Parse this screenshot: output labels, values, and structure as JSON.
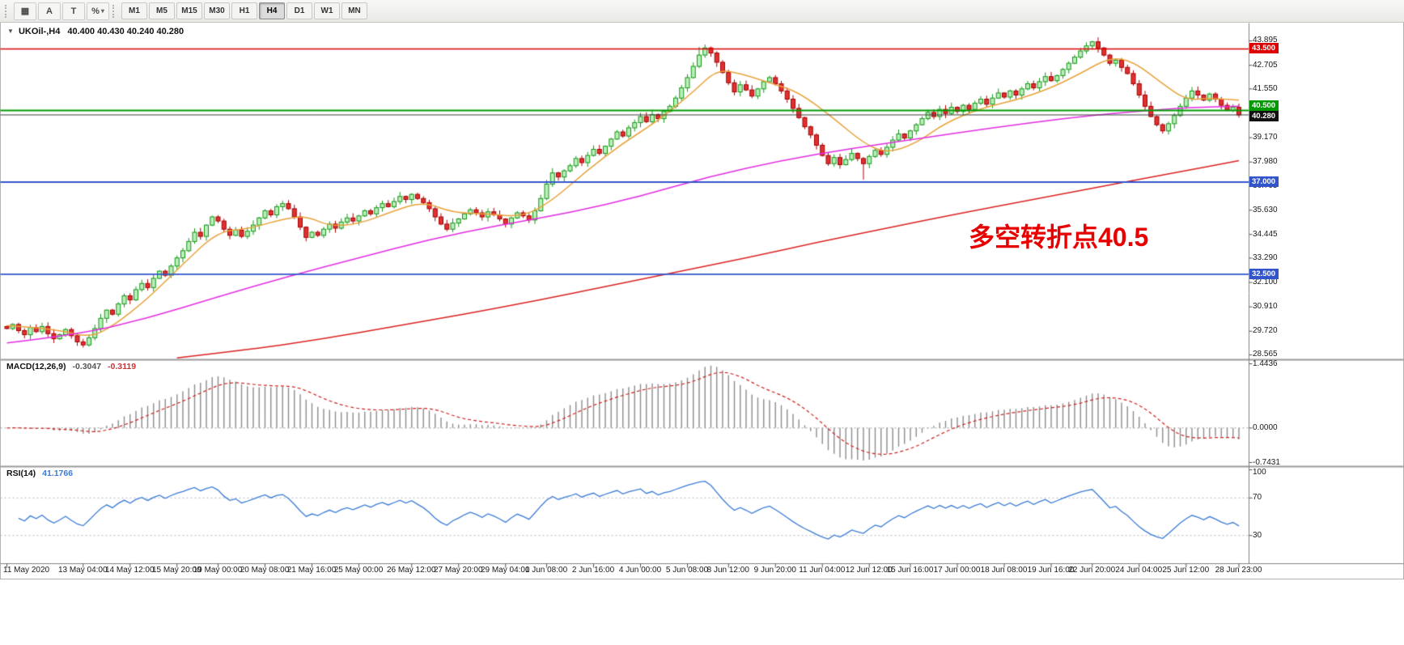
{
  "window": {
    "title_symbol": "UKOil-,H4",
    "ohlc": "40.400 40.430 40.240 40.280"
  },
  "toolbar": {
    "tools": [
      {
        "id": "chart-grid-tool",
        "glyph": "▦",
        "caret": false
      },
      {
        "id": "cursor-tool",
        "glyph": "A",
        "caret": false
      },
      {
        "id": "text-tool",
        "glyph": "T",
        "caret": false
      },
      {
        "id": "styles-dropdown",
        "glyph": "%",
        "caret": true
      }
    ],
    "timeframes": [
      {
        "label": "M1",
        "active": false
      },
      {
        "label": "M5",
        "active": false
      },
      {
        "label": "M15",
        "active": false
      },
      {
        "label": "M30",
        "active": false
      },
      {
        "label": "H1",
        "active": false
      },
      {
        "label": "H4",
        "active": true
      },
      {
        "label": "D1",
        "active": false
      },
      {
        "label": "W1",
        "active": false
      },
      {
        "label": "MN",
        "active": false
      }
    ]
  },
  "main_pane": {
    "ticks": [
      "43.895",
      "42.705",
      "41.550",
      "39.170",
      "37.980",
      "36.795",
      "35.630",
      "34.445",
      "33.290",
      "32.100",
      "30.910",
      "29.720",
      "28.565"
    ],
    "hlines": [
      {
        "value": 43.5,
        "label": "43.500",
        "color": "#dc0000",
        "width": 1.6,
        "badge_pos": "center"
      },
      {
        "value": 40.5,
        "label": "40.500",
        "color": "#009900",
        "width": 2.0,
        "badge_pos": "above"
      },
      {
        "value": 37.0,
        "label": "37.000",
        "color": "#3355cc",
        "width": 1.8,
        "badge_pos": "center"
      },
      {
        "value": 32.5,
        "label": "32.500",
        "color": "#3355cc",
        "width": 1.8,
        "badge_pos": "center"
      }
    ],
    "current_price": {
      "value": 40.28,
      "label": "40.280",
      "color": "#111111",
      "line_color": "#3c3c3c"
    },
    "annotation": {
      "text": "多空转折点40.5",
      "color": "#e60000"
    }
  },
  "macd": {
    "label": "MACD(12,26,9)",
    "value_main": "-0.3047",
    "value_signal": "-0.3119",
    "fast": 12,
    "slow": 26,
    "signal_period": 9,
    "ticks": [
      "1.4436",
      "0.0000",
      "-0.7431"
    ]
  },
  "rsi": {
    "label": "RSI(14)",
    "value": "41.1766",
    "period": 14,
    "levels": [
      70,
      30
    ],
    "ticks": [
      "100",
      "70",
      "30"
    ]
  },
  "time_axis": {
    "labels": [
      {
        "bar": 0,
        "text": "11 May 2020"
      },
      {
        "bar": 13,
        "text": "13 May 04:00"
      },
      {
        "bar": 21,
        "text": "14 May 12:00"
      },
      {
        "bar": 29,
        "text": "15 May 20:00"
      },
      {
        "bar": 36,
        "text": "19 May 00:00"
      },
      {
        "bar": 44,
        "text": "20 May 08:00"
      },
      {
        "bar": 52,
        "text": "21 May 16:00"
      },
      {
        "bar": 60,
        "text": "25 May 00:00"
      },
      {
        "bar": 69,
        "text": "26 May 12:00"
      },
      {
        "bar": 77,
        "text": "27 May 20:00"
      },
      {
        "bar": 85,
        "text": "29 May 04:00"
      },
      {
        "bar": 92,
        "text": "1 Jun 08:00"
      },
      {
        "bar": 100,
        "text": "2 Jun 16:00"
      },
      {
        "bar": 108,
        "text": "4 Jun 00:00"
      },
      {
        "bar": 116,
        "text": "5 Jun 08:00"
      },
      {
        "bar": 123,
        "text": "8 Jun 12:00"
      },
      {
        "bar": 131,
        "text": "9 Jun 20:00"
      },
      {
        "bar": 139,
        "text": "11 Jun 04:00"
      },
      {
        "bar": 147,
        "text": "12 Jun 12:00"
      },
      {
        "bar": 154,
        "text": "15 Jun 16:00"
      },
      {
        "bar": 162,
        "text": "17 Jun 00:00"
      },
      {
        "bar": 170,
        "text": "18 Jun 08:00"
      },
      {
        "bar": 178,
        "text": "19 Jun 16:00"
      },
      {
        "bar": 185,
        "text": "22 Jun 20:00"
      },
      {
        "bar": 193,
        "text": "24 Jun 04:00"
      },
      {
        "bar": 201,
        "text": "25 Jun 12:00"
      },
      {
        "bar": 210,
        "text": "28 Jun 23:00"
      }
    ]
  },
  "chart_data": {
    "type": "candlestick",
    "title": "UKOil-,H4",
    "symbol": "UKOil-",
    "timeframe": "H4",
    "last_ohlc": [
      40.4,
      40.43,
      40.24,
      40.28
    ],
    "ylim": [
      28.4,
      44.76
    ],
    "first_open": 29.95,
    "closes": [
      29.85,
      30.05,
      29.75,
      29.55,
      29.9,
      29.7,
      29.95,
      29.6,
      29.35,
      29.55,
      29.8,
      29.5,
      29.2,
      29.05,
      29.4,
      29.85,
      30.35,
      30.75,
      30.55,
      31.05,
      31.45,
      31.25,
      31.75,
      32.05,
      31.85,
      32.3,
      32.65,
      32.45,
      32.9,
      33.3,
      33.65,
      34.1,
      34.55,
      34.35,
      34.9,
      35.3,
      35.1,
      34.7,
      34.4,
      34.65,
      34.35,
      34.6,
      34.9,
      35.25,
      35.6,
      35.4,
      35.8,
      35.95,
      35.7,
      35.3,
      34.8,
      34.3,
      34.55,
      34.4,
      34.7,
      34.95,
      34.75,
      35.05,
      35.25,
      35.1,
      35.35,
      35.6,
      35.45,
      35.75,
      35.95,
      35.8,
      36.05,
      36.3,
      36.15,
      36.4,
      36.2,
      36.0,
      35.7,
      35.3,
      34.95,
      34.7,
      35.0,
      35.2,
      35.45,
      35.65,
      35.5,
      35.3,
      35.55,
      35.4,
      35.2,
      34.95,
      35.25,
      35.5,
      35.35,
      35.15,
      35.6,
      36.2,
      36.9,
      37.45,
      37.25,
      37.55,
      37.8,
      38.15,
      37.95,
      38.3,
      38.6,
      38.4,
      38.75,
      39.1,
      39.45,
      39.25,
      39.65,
      39.9,
      40.2,
      39.95,
      40.3,
      40.1,
      40.45,
      40.7,
      41.1,
      41.6,
      42.1,
      42.65,
      43.2,
      43.55,
      43.3,
      42.85,
      42.35,
      41.85,
      41.4,
      41.75,
      41.5,
      41.2,
      41.55,
      41.9,
      42.1,
      41.8,
      41.45,
      41.05,
      40.6,
      40.15,
      39.7,
      39.3,
      38.8,
      38.3,
      37.9,
      38.2,
      37.85,
      38.1,
      38.4,
      38.15,
      37.9,
      38.25,
      38.55,
      38.35,
      38.7,
      39.05,
      39.35,
      39.15,
      39.5,
      39.8,
      40.1,
      40.4,
      40.2,
      40.55,
      40.35,
      40.65,
      40.45,
      40.75,
      40.55,
      40.85,
      41.05,
      40.8,
      41.1,
      41.35,
      41.15,
      41.45,
      41.25,
      41.55,
      41.8,
      41.6,
      41.9,
      42.15,
      41.95,
      42.2,
      42.5,
      42.8,
      43.1,
      43.4,
      43.65,
      43.85,
      43.55,
      43.2,
      42.8,
      42.95,
      42.6,
      42.3,
      41.8,
      41.25,
      40.7,
      40.2,
      39.8,
      39.5,
      39.85,
      40.25,
      40.7,
      41.1,
      41.45,
      41.25,
      41.0,
      41.3,
      41.05,
      40.75,
      40.5,
      40.65,
      40.28
    ],
    "wick_overrides": {
      "13": {
        "low": 28.92
      },
      "118": {
        "high": 43.6
      },
      "119": {
        "high": 43.72
      },
      "146": {
        "low": 37.12
      },
      "185": {
        "high": 43.895
      }
    },
    "moving_averages": [
      {
        "name": "ma-fast",
        "color": "#e8a23c",
        "points": [
          [
            0,
            30.0
          ],
          [
            8,
            29.85
          ],
          [
            14,
            29.4
          ],
          [
            18,
            29.95
          ],
          [
            24,
            31.3
          ],
          [
            30,
            33.0
          ],
          [
            36,
            34.6
          ],
          [
            41,
            34.7
          ],
          [
            47,
            35.2
          ],
          [
            51,
            35.35
          ],
          [
            55,
            34.85
          ],
          [
            60,
            34.95
          ],
          [
            66,
            35.6
          ],
          [
            71,
            36.05
          ],
          [
            76,
            35.5
          ],
          [
            82,
            35.45
          ],
          [
            88,
            35.3
          ],
          [
            93,
            36.1
          ],
          [
            99,
            37.6
          ],
          [
            105,
            38.9
          ],
          [
            111,
            40.0
          ],
          [
            117,
            41.4
          ],
          [
            121,
            42.5
          ],
          [
            125,
            42.3
          ],
          [
            130,
            41.85
          ],
          [
            135,
            41.4
          ],
          [
            141,
            40.1
          ],
          [
            146,
            38.9
          ],
          [
            150,
            38.4
          ],
          [
            155,
            38.9
          ],
          [
            160,
            39.9
          ],
          [
            166,
            40.6
          ],
          [
            172,
            41.0
          ],
          [
            178,
            41.6
          ],
          [
            183,
            42.3
          ],
          [
            188,
            43.1
          ],
          [
            192,
            42.9
          ],
          [
            197,
            41.8
          ],
          [
            201,
            41.0
          ],
          [
            205,
            41.1
          ],
          [
            210,
            41.0
          ]
        ]
      },
      {
        "name": "ma-mid",
        "color": "#e32ee3",
        "points": [
          [
            0,
            29.15
          ],
          [
            12,
            29.55
          ],
          [
            24,
            30.35
          ],
          [
            36,
            31.4
          ],
          [
            48,
            32.4
          ],
          [
            60,
            33.3
          ],
          [
            72,
            34.2
          ],
          [
            84,
            34.9
          ],
          [
            96,
            35.5
          ],
          [
            108,
            36.3
          ],
          [
            120,
            37.3
          ],
          [
            132,
            38.05
          ],
          [
            144,
            38.65
          ],
          [
            156,
            39.15
          ],
          [
            168,
            39.65
          ],
          [
            180,
            40.1
          ],
          [
            192,
            40.45
          ],
          [
            202,
            40.65
          ],
          [
            210,
            40.7
          ]
        ]
      },
      {
        "name": "ma-slow",
        "color": "#dd2222",
        "points": [
          [
            29,
            28.42
          ],
          [
            42,
            28.85
          ],
          [
            54,
            29.35
          ],
          [
            66,
            29.95
          ],
          [
            78,
            30.55
          ],
          [
            90,
            31.2
          ],
          [
            102,
            31.9
          ],
          [
            114,
            32.6
          ],
          [
            126,
            33.3
          ],
          [
            138,
            34.05
          ],
          [
            150,
            34.75
          ],
          [
            162,
            35.45
          ],
          [
            174,
            36.1
          ],
          [
            186,
            36.75
          ],
          [
            198,
            37.4
          ],
          [
            210,
            38.05
          ]
        ]
      }
    ]
  },
  "colors": {
    "up": "#169616",
    "up_fill": "#b9efb9",
    "down": "#a80000",
    "down_fill": "#e03131",
    "macd_hist": "#8c8c8c",
    "macd_signal": "#cc2222",
    "macd_zero": "#999999",
    "rsi_line": "#3a7bd5",
    "rsi_level": "#b6b6c6"
  }
}
